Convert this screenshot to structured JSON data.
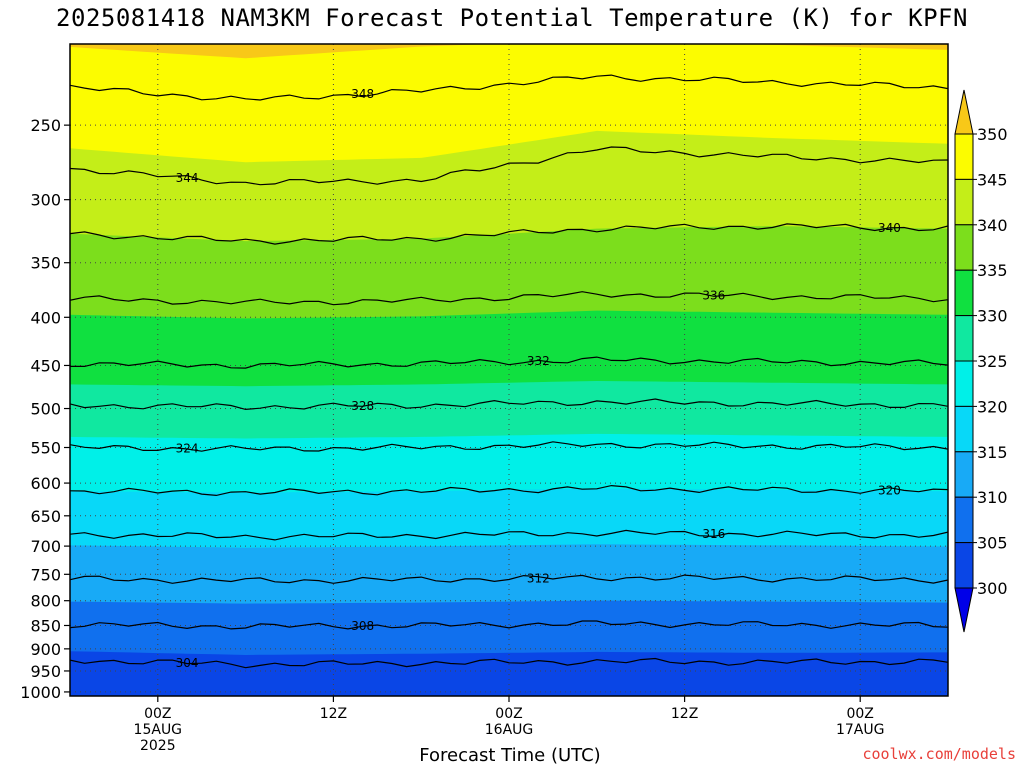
{
  "title": "2025081418 NAM3KM Forecast Potential Temperature (K) for KPFN",
  "credit": "coolwx.com/models",
  "colors": {
    "ground": "#a0522d",
    "contour": "#000000",
    "gridline": "#444444",
    "fill_bands": [
      {
        "from": 295,
        "to": 300,
        "color": "#0000e8"
      },
      {
        "from": 300,
        "to": 305,
        "color": "#0a46e6"
      },
      {
        "from": 305,
        "to": 310,
        "color": "#1070ee"
      },
      {
        "from": 310,
        "to": 315,
        "color": "#18aaf6"
      },
      {
        "from": 315,
        "to": 320,
        "color": "#08d8f8"
      },
      {
        "from": 320,
        "to": 325,
        "color": "#00f0e8"
      },
      {
        "from": 325,
        "to": 330,
        "color": "#10e8a0"
      },
      {
        "from": 330,
        "to": 335,
        "color": "#10e040"
      },
      {
        "from": 335,
        "to": 340,
        "color": "#7cde1c"
      },
      {
        "from": 340,
        "to": 345,
        "color": "#c4ee18"
      },
      {
        "from": 345,
        "to": 350,
        "color": "#fcfc00"
      },
      {
        "from": 350,
        "to": 355,
        "color": "#f8c818"
      }
    ]
  },
  "chart_data": {
    "type": "heatmap",
    "title": "2025081418 NAM3KM Forecast Potential Temperature (K) for KPFN",
    "xlabel": "Forecast Time (UTC)",
    "ylabel": "",
    "variable": "Potential Temperature (K)",
    "y_scale": "pressure (log, inverted)",
    "ylim": [
      1010,
      205
    ],
    "xlim_hours": [
      -6,
      54
    ],
    "y_ticks": [
      250,
      300,
      350,
      400,
      450,
      500,
      550,
      600,
      650,
      700,
      750,
      800,
      850,
      900,
      950,
      1000
    ],
    "x_ticks": [
      {
        "hour": 0,
        "lines": [
          "00Z",
          "15AUG",
          "2025"
        ]
      },
      {
        "hour": 12,
        "lines": [
          "12Z"
        ]
      },
      {
        "hour": 24,
        "lines": [
          "00Z",
          "16AUG"
        ]
      },
      {
        "hour": 36,
        "lines": [
          "12Z"
        ]
      },
      {
        "hour": 48,
        "lines": [
          "00Z",
          "17AUG"
        ]
      }
    ],
    "grid": true,
    "colorbar": {
      "labels": [
        350,
        345,
        340,
        335,
        330,
        325,
        320,
        315,
        310,
        305,
        300
      ],
      "extend": "both",
      "placement": "right"
    },
    "contour_interval": 4,
    "isentropes": [
      {
        "theta": 304,
        "pressure": [
          925,
          935,
          932,
          928,
          930,
          928
        ],
        "label": "304"
      },
      {
        "theta": 308,
        "pressure": [
          848,
          852,
          850,
          846,
          848,
          850
        ],
        "label": "308"
      },
      {
        "theta": 312,
        "pressure": [
          758,
          762,
          760,
          756,
          758,
          760
        ],
        "label": "312"
      },
      {
        "theta": 316,
        "pressure": [
          680,
          684,
          682,
          678,
          680,
          682
        ],
        "label": "316"
      },
      {
        "theta": 320,
        "pressure": [
          612,
          614,
          612,
          608,
          610,
          612
        ],
        "label": "320"
      },
      {
        "theta": 324,
        "pressure": [
          550,
          552,
          550,
          546,
          548,
          550
        ],
        "label": "324"
      },
      {
        "theta": 328,
        "pressure": [
          496,
          498,
          496,
          492,
          494,
          496
        ],
        "label": "328"
      },
      {
        "theta": 332,
        "pressure": [
          448,
          450,
          448,
          444,
          446,
          448
        ],
        "label": "332"
      },
      {
        "theta": 336,
        "pressure": [
          382,
          386,
          384,
          378,
          380,
          382
        ],
        "label": "336"
      },
      {
        "theta": 340,
        "pressure": [
          326,
          332,
          330,
          322,
          320,
          322
        ],
        "label": "340"
      },
      {
        "theta": 344,
        "pressure": [
          278,
          288,
          286,
          265,
          270,
          274
        ],
        "label": "344"
      },
      {
        "theta": 348,
        "pressure": [
          228,
          235,
          230,
          222,
          225,
          228
        ],
        "label": "348"
      }
    ],
    "isentrope_hours": [
      -6,
      6,
      18,
      30,
      42,
      54
    ]
  }
}
